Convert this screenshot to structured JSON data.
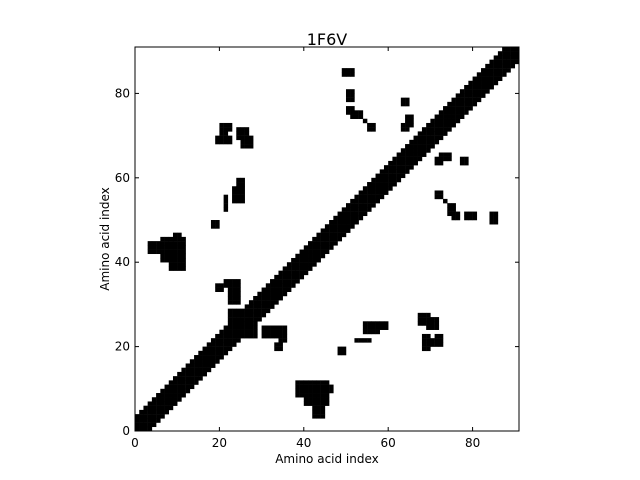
{
  "chart_data": {
    "type": "heatmap",
    "title": "1F6V",
    "xlabel": "Amino acid index",
    "ylabel": "Amino acid index",
    "xlim": [
      0,
      91
    ],
    "ylim": [
      0,
      91
    ],
    "xticks": [
      0,
      20,
      40,
      60,
      80
    ],
    "yticks": [
      0,
      20,
      40,
      60,
      80
    ],
    "grid": false,
    "colors": {
      "contact": "#000000",
      "background": "#ffffff"
    },
    "contact_rule": "cells where |i - j| <= band_halfwidth along the diagonal are filled; plus the off-diagonal contact clusters below",
    "band_halfwidth": 3,
    "off_diagonal_clusters": [
      {
        "x": [
          20,
          22
        ],
        "y": [
          71,
          72
        ]
      },
      {
        "x": [
          21,
          22
        ],
        "y": [
          68,
          69
        ]
      },
      {
        "x": [
          24,
          26
        ],
        "y": [
          70,
          71
        ]
      },
      {
        "x": [
          25,
          27
        ],
        "y": [
          67,
          68
        ]
      },
      {
        "x": [
          49,
          51
        ],
        "y": [
          84,
          85
        ]
      },
      {
        "x": [
          50,
          51
        ],
        "y": [
          75,
          76
        ]
      },
      {
        "x": [
          54,
          54
        ],
        "y": [
          73,
          73
        ]
      },
      {
        "x": [
          63,
          64
        ],
        "y": [
          77,
          78
        ]
      },
      {
        "x": [
          63,
          64
        ],
        "y": [
          71,
          72
        ]
      },
      {
        "x": [
          72,
          74
        ],
        "y": [
          64,
          65
        ]
      },
      {
        "x": [
          71,
          72
        ],
        "y": [
          55,
          56
        ]
      },
      {
        "x": [
          74,
          75
        ],
        "y": [
          51,
          53
        ]
      },
      {
        "x": [
          78,
          80
        ],
        "y": [
          50,
          51
        ]
      },
      {
        "x": [
          84,
          85
        ],
        "y": [
          50,
          51
        ]
      },
      {
        "x": [
          21,
          21
        ],
        "y": [
          52,
          55
        ]
      },
      {
        "x": [
          23,
          25
        ],
        "y": [
          55,
          57
        ]
      },
      {
        "x": [
          3,
          11
        ],
        "y": [
          42,
          44
        ]
      },
      {
        "x": [
          8,
          10
        ],
        "y": [
          38,
          39
        ]
      },
      {
        "x": [
          9,
          11
        ],
        "y": [
          44,
          45
        ]
      },
      {
        "x": [
          19,
          20
        ],
        "y": [
          33,
          34
        ]
      },
      {
        "x": [
          22,
          24
        ],
        "y": [
          30,
          35
        ]
      },
      {
        "x": [
          26,
          28
        ],
        "y": [
          22,
          25
        ]
      },
      {
        "x": [
          30,
          32
        ],
        "y": [
          22,
          23
        ]
      },
      {
        "x": [
          34,
          35
        ],
        "y": [
          21,
          22
        ]
      },
      {
        "x": [
          48,
          49
        ],
        "y": [
          18,
          19
        ]
      },
      {
        "x": [
          54,
          56
        ],
        "y": [
          23,
          25
        ]
      },
      {
        "x": [
          58,
          59
        ],
        "y": [
          24,
          25
        ]
      },
      {
        "x": [
          67,
          69
        ],
        "y": [
          25,
          27
        ]
      },
      {
        "x": [
          69,
          71
        ],
        "y": [
          24,
          26
        ]
      },
      {
        "x": [
          68,
          69
        ],
        "y": [
          19,
          21
        ]
      },
      {
        "x": [
          70,
          72
        ],
        "y": [
          20,
          21
        ]
      },
      {
        "x": [
          38,
          39
        ],
        "y": [
          9,
          11
        ]
      },
      {
        "x": [
          40,
          45
        ],
        "y": [
          6,
          11
        ]
      },
      {
        "x": [
          45,
          46
        ],
        "y": [
          9,
          10
        ]
      }
    ]
  }
}
